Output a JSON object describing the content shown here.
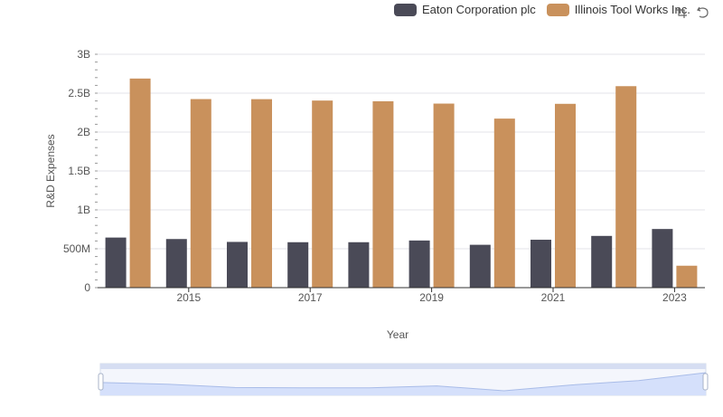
{
  "legend": {
    "items": [
      {
        "name": "Eaton Corporation plc",
        "color": "#4a4a57"
      },
      {
        "name": "Illinois Tool Works Inc.",
        "color": "#c9915c"
      }
    ]
  },
  "toolbox": {
    "icons": [
      "zoom-icon",
      "restore-icon"
    ]
  },
  "chart_data": {
    "type": "bar",
    "categories": [
      "2014",
      "2015",
      "2016",
      "2017",
      "2018",
      "2019",
      "2020",
      "2021",
      "2022",
      "2023"
    ],
    "x_tick_labels": [
      "2015",
      "2017",
      "2019",
      "2021",
      "2023"
    ],
    "series": [
      {
        "name": "Eaton Corporation plc",
        "color": "#4a4a57",
        "values": [
          644000000,
          625000000,
          588000000,
          584000000,
          584000000,
          606000000,
          551000000,
          616000000,
          665000000,
          754000000
        ]
      },
      {
        "name": "Illinois Tool Works Inc.",
        "color": "#c9915c",
        "values": [
          2688000000,
          2424000000,
          2423000000,
          2405000000,
          2396000000,
          2366000000,
          2173000000,
          2363000000,
          2590000000,
          282000000
        ]
      }
    ],
    "xlabel": "Year",
    "ylabel": "R&D Expenses",
    "ylim": [
      0,
      3000000000
    ],
    "y_ticks": [
      {
        "value": 0,
        "label": "0"
      },
      {
        "value": 500000000,
        "label": "500M"
      },
      {
        "value": 1000000000,
        "label": "1B"
      },
      {
        "value": 1500000000,
        "label": "1.5B"
      },
      {
        "value": 2000000000,
        "label": "2B"
      },
      {
        "value": 2500000000,
        "label": "2.5B"
      },
      {
        "value": 3000000000,
        "label": "3B"
      }
    ],
    "grid": true,
    "legend_position": "top-right",
    "datazoom": true
  }
}
